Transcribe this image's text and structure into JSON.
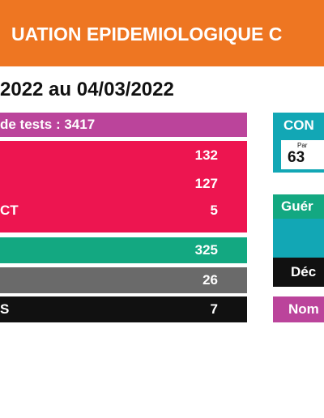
{
  "banner": {
    "title": "UATION EPIDEMIOLOGIQUE C"
  },
  "period": "2022 au 04/03/2022",
  "left_panel": {
    "tests": {
      "label": "de tests : 3417"
    },
    "positives": [
      {
        "label": "",
        "value": "132"
      },
      {
        "label": "",
        "value": "127"
      },
      {
        "label": "CT",
        "value": "5"
      }
    ],
    "gueris": {
      "label": "",
      "value": "325"
    },
    "gray": {
      "label": "",
      "value": "26"
    },
    "black": {
      "label": "S",
      "value": "7"
    }
  },
  "right_panel": {
    "contacts": {
      "title": "CON",
      "par_label": "Par",
      "value": "63"
    },
    "gueris_label": "Guér",
    "deces_label": "Déc",
    "nombre_label": "Nom"
  },
  "colors": {
    "banner": "#ee7622",
    "magenta": "#bb449b",
    "red": "#ed1550",
    "green": "#13a881",
    "teal": "#12a7b5",
    "gray": "#6a6a6a",
    "black": "#111111"
  }
}
